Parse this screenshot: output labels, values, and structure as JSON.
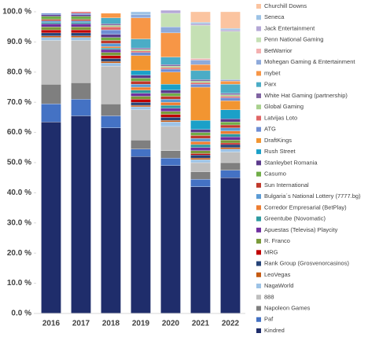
{
  "chart_data": {
    "type": "stacked_bar",
    "categories": [
      "2016",
      "2017",
      "2018",
      "2019",
      "2020",
      "2021",
      "2022"
    ],
    "ylim": [
      0,
      100
    ],
    "yticks": [
      {
        "value": 0,
        "label": "0.0 %"
      },
      {
        "value": 10,
        "label": "10.0 %"
      },
      {
        "value": 20,
        "label": "20.0 %"
      },
      {
        "value": 30,
        "label": "30.0 %"
      },
      {
        "value": 40,
        "label": "40.0 %"
      },
      {
        "value": 50,
        "label": "50.0 %"
      },
      {
        "value": 60,
        "label": "60.0 %"
      },
      {
        "value": 70,
        "label": "70.0 %"
      },
      {
        "value": 80,
        "label": "80.0 %"
      },
      {
        "value": 90,
        "label": "90.0 %"
      },
      {
        "value": 100,
        "label": "100.0 %"
      }
    ],
    "grid": false,
    "legend": "right",
    "series": [
      {
        "name": "Kindred",
        "color": "#1f2d6b",
        "values": [
          63.5,
          65.5,
          61.5,
          52,
          49,
          42,
          45
        ]
      },
      {
        "name": "Paf",
        "color": "#4472c4",
        "values": [
          6,
          5.5,
          4,
          2.5,
          2.5,
          2.5,
          2.5
        ]
      },
      {
        "name": "Napoleon Games",
        "color": "#7f7f7f",
        "values": [
          6.5,
          5.5,
          4,
          3,
          2.5,
          2.5,
          2.5
        ]
      },
      {
        "name": "888",
        "color": "#bfbfbf",
        "values": [
          14.5,
          14,
          12.5,
          10,
          8,
          3,
          3.5
        ]
      },
      {
        "name": "NagaWorld",
        "color": "#9dc3e6",
        "values": [
          1,
          1,
          1,
          1,
          1.5,
          1,
          1
        ]
      },
      {
        "name": "LeoVegas",
        "color": "#c55a11",
        "values": [
          0.5,
          0.5,
          0.5,
          0.5,
          0.5,
          0.5,
          0.5
        ]
      },
      {
        "name": "Rank Group (Grosvenorcasinos)",
        "color": "#264478",
        "values": [
          1,
          1,
          1,
          1,
          1,
          1,
          1
        ]
      },
      {
        "name": "MRG",
        "color": "#c00000",
        "values": [
          1,
          1,
          1,
          1,
          1,
          0.5,
          0.5
        ]
      },
      {
        "name": "R. Franco",
        "color": "#7a9a3a",
        "values": [
          1,
          1,
          1,
          1,
          1,
          1,
          1
        ]
      },
      {
        "name": "Apuestas (Televisa) Playcity",
        "color": "#7030a0",
        "values": [
          1,
          1,
          1,
          1,
          1,
          1,
          1
        ]
      },
      {
        "name": "Greentube (Novomatic)",
        "color": "#2e9aa0",
        "values": [
          0.5,
          0.5,
          0.5,
          1,
          1,
          1,
          1
        ]
      },
      {
        "name": "Corredor Empresarial (BetPlay)",
        "color": "#ed7d31",
        "values": [
          0,
          0,
          0.5,
          1,
          1,
          1,
          1
        ]
      },
      {
        "name": "Bulgaria´s National Lottery (7777.bg)",
        "color": "#5b9bd5",
        "values": [
          0.5,
          0.5,
          1,
          1,
          1,
          1,
          1
        ]
      },
      {
        "name": "Sun International",
        "color": "#c0392b",
        "values": [
          0.5,
          0.5,
          1,
          1,
          1,
          1,
          1
        ]
      },
      {
        "name": "Casumo",
        "color": "#70ad47",
        "values": [
          1,
          1,
          1,
          1,
          1,
          1,
          1
        ]
      },
      {
        "name": "Stanleybet Romania",
        "color": "#5b3a8c",
        "values": [
          0.5,
          0.5,
          1,
          1,
          1,
          1,
          1
        ]
      },
      {
        "name": "Rush Street",
        "color": "#1ba0c8",
        "values": [
          0,
          0,
          0,
          1.5,
          2,
          3,
          3
        ]
      },
      {
        "name": "DraftKings",
        "color": "#f29531",
        "values": [
          0,
          0,
          0,
          5,
          4,
          11,
          3
        ]
      },
      {
        "name": "ATG",
        "color": "#6f8ed4",
        "values": [
          0.5,
          0.5,
          1.5,
          1,
          1,
          1,
          1
        ]
      },
      {
        "name": "Latvijas Loto",
        "color": "#e06666",
        "values": [
          0,
          0.5,
          1,
          0.5,
          0.5,
          0.5,
          0.5
        ]
      },
      {
        "name": "Global Gaming",
        "color": "#a9d18e",
        "values": [
          0,
          0,
          0.5,
          0.5,
          0.5,
          0.5,
          0.5
        ]
      },
      {
        "name": "White Hat Gaming (partnership)",
        "color": "#8064a2",
        "values": [
          0,
          0,
          0.5,
          0.5,
          0.5,
          0.5,
          0.5
        ]
      },
      {
        "name": "Parx",
        "color": "#4bacc6",
        "values": [
          0,
          0,
          2,
          3,
          2.5,
          3,
          3
        ]
      },
      {
        "name": "mybet",
        "color": "#f79646",
        "values": [
          0,
          0,
          1.5,
          7,
          8,
          2,
          1
        ]
      },
      {
        "name": "Mohegan Gaming & Entertainment",
        "color": "#8eaadb",
        "values": [
          0,
          0,
          0,
          1,
          2,
          1.5,
          0.5
        ]
      },
      {
        "name": "BetWarrior",
        "color": "#f4b0b0",
        "values": [
          0,
          0,
          0,
          0,
          0,
          0.5,
          0
        ]
      },
      {
        "name": "Penn National Gaming",
        "color": "#c5e0b4",
        "values": [
          0,
          0,
          0,
          0,
          4.5,
          11,
          16
        ]
      },
      {
        "name": "Jack Entertainment",
        "color": "#b4a7d6",
        "values": [
          0,
          0,
          0,
          0,
          1,
          0.5,
          0.5
        ]
      },
      {
        "name": "Seneca",
        "color": "#9dc3e6",
        "values": [
          0,
          0,
          0,
          1,
          0,
          0.5,
          0.5
        ]
      },
      {
        "name": "Churchill Downs",
        "color": "#fbc4a0",
        "values": [
          0,
          0,
          0,
          0,
          0,
          3.5,
          5.5
        ]
      }
    ]
  }
}
